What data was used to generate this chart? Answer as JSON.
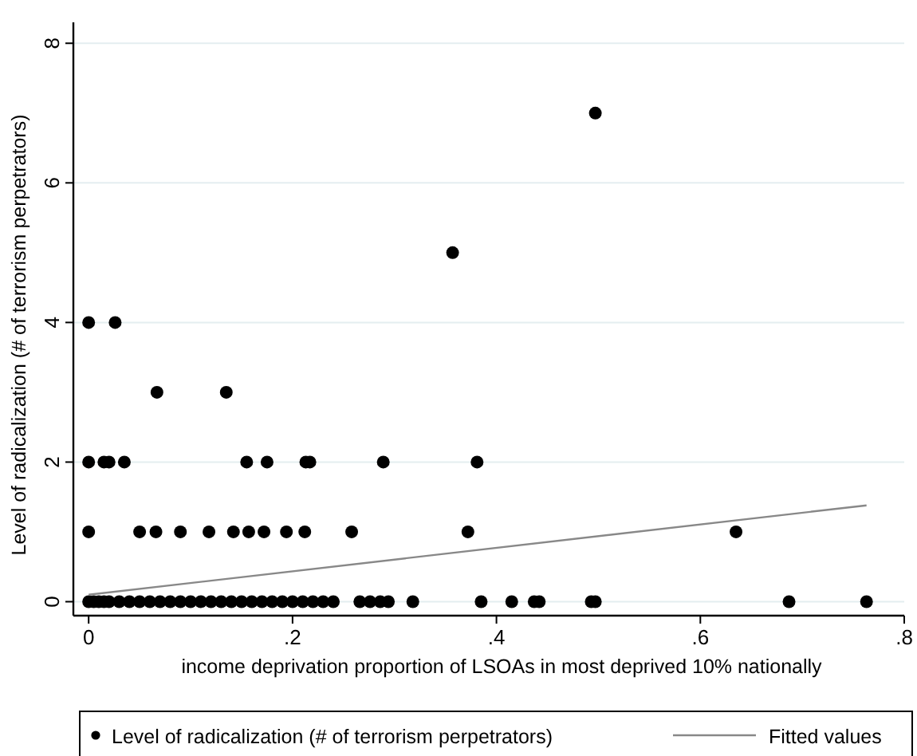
{
  "chart_data": {
    "type": "scatter",
    "xlabel": "income deprivation proportion of LSOAs in most deprived 10% nationally",
    "ylabel": "Level of radicalization (# of terrorism perpetrators)",
    "xlim": [
      -0.015,
      0.8
    ],
    "ylim": [
      -0.2,
      8.3
    ],
    "xticks": [
      {
        "value": 0,
        "label": "0"
      },
      {
        "value": 0.2,
        "label": ".2"
      },
      {
        "value": 0.4,
        "label": ".4"
      },
      {
        "value": 0.6,
        "label": ".6"
      },
      {
        "value": 0.8,
        "label": ".8"
      }
    ],
    "yticks": [
      0,
      2,
      4,
      6,
      8
    ],
    "grid": "y",
    "legend": "bottom",
    "series": [
      {
        "name": "Level of radicalization (# of terrorism perpetrators)",
        "marker": "circle",
        "color": "#000000",
        "x": [
          0,
          0.026,
          0.067,
          0.135,
          0,
          0.015,
          0.02,
          0.035,
          0.155,
          0.175,
          0.213,
          0.217,
          0.289,
          0.381,
          0,
          0.05,
          0.066,
          0.09,
          0.118,
          0.142,
          0.157,
          0.172,
          0.194,
          0.212,
          0.258,
          0.372,
          0.635,
          0.357,
          0.497,
          0,
          0.005,
          0.01,
          0.015,
          0.02,
          0.03,
          0.04,
          0.05,
          0.06,
          0.07,
          0.08,
          0.09,
          0.1,
          0.11,
          0.12,
          0.13,
          0.14,
          0.15,
          0.16,
          0.17,
          0.18,
          0.19,
          0.2,
          0.21,
          0.22,
          0.23,
          0.24,
          0.266,
          0.276,
          0.286,
          0.294,
          0.318,
          0.385,
          0.415,
          0.437,
          0.442,
          0.493,
          0.497,
          0.687,
          0.763
        ],
        "values": [
          4,
          4,
          3,
          3,
          2,
          2,
          2,
          2,
          2,
          2,
          2,
          2,
          2,
          2,
          1,
          1,
          1,
          1,
          1,
          1,
          1,
          1,
          1,
          1,
          1,
          1,
          1,
          5,
          7,
          0,
          0,
          0,
          0,
          0,
          0,
          0,
          0,
          0,
          0,
          0,
          0,
          0,
          0,
          0,
          0,
          0,
          0,
          0,
          0,
          0,
          0,
          0,
          0,
          0,
          0,
          0,
          0,
          0,
          0,
          0,
          0,
          0,
          0,
          0,
          0,
          0,
          0,
          0,
          0
        ]
      },
      {
        "name": "Fitted values",
        "type": "line",
        "line_style": "solid",
        "color": "#888888",
        "x": [
          0,
          0.763
        ],
        "values": [
          0.1,
          1.38
        ]
      }
    ]
  }
}
